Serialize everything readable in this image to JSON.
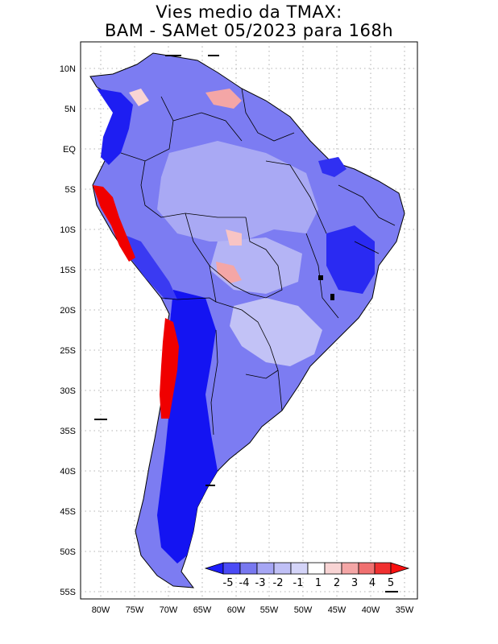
{
  "title": {
    "line1": "Vies medio da TMAX:",
    "line2": "BAM - SAMet 05/2023  para 168h"
  },
  "lat_labels": [
    "10N",
    "5N",
    "EQ",
    "5S",
    "10S",
    "15S",
    "20S",
    "25S",
    "30S",
    "35S",
    "40S",
    "45S",
    "50S",
    "55S"
  ],
  "lon_labels": [
    "80W",
    "75W",
    "70W",
    "65W",
    "60W",
    "55W",
    "50W",
    "45W",
    "40W",
    "35W"
  ],
  "colorbar": {
    "labels": [
      "-5",
      "-4",
      "-3",
      "-2",
      "-1",
      "1",
      "2",
      "3",
      "4",
      "5"
    ],
    "colors": [
      "#1d1dfb",
      "#4a4af5",
      "#7878f0",
      "#a6a6f4",
      "#d4d4f8",
      "#ffffff",
      "#f8d4d4",
      "#f4a6a6",
      "#f07070",
      "#f03030",
      "#f81010"
    ]
  },
  "colors": {
    "deep_blue": "#1010f0",
    "mid_blue": "#5a5af4",
    "light_blue": "#a8a8f4",
    "red": "#f00000",
    "coast": "#000000"
  }
}
